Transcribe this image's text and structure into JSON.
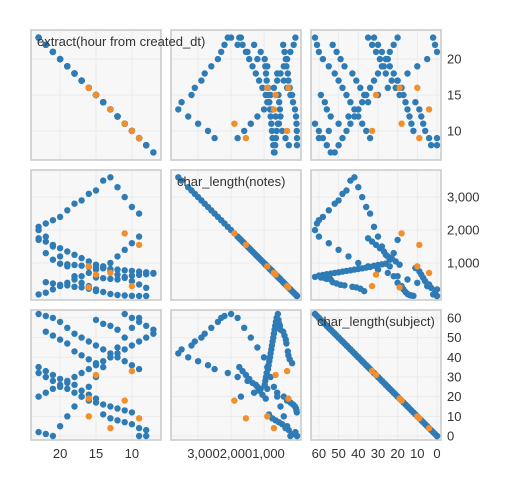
{
  "chart_data": {
    "type": "scatter",
    "title": "",
    "variables": [
      {
        "name": "extract(hour from created_dt)",
        "range": [
          6.5,
          23.5
        ],
        "ticks": [
          10,
          15,
          20
        ],
        "tick_labels": [
          "10",
          "15",
          "20"
        ],
        "reversed_x": true
      },
      {
        "name": "char_length(notes)",
        "range": [
          0,
          3700
        ],
        "ticks": [
          1000,
          2000,
          3000
        ],
        "tick_labels": [
          "1,000",
          "2,000",
          "3,000"
        ],
        "reversed_x": true
      },
      {
        "name": "char_length(subject)",
        "range": [
          0,
          62
        ],
        "ticks": [
          0,
          10,
          20,
          30,
          40,
          50,
          60
        ],
        "tick_labels": [
          "0",
          "10",
          "20",
          "30",
          "40",
          "50",
          "60"
        ],
        "reversed_x": true
      }
    ],
    "x_tick_text": "3,0002,0001,000",
    "colors": {
      "base": "#2e7bb6",
      "highlight": "#f28e2b",
      "panel": "#f7f7f7",
      "border": "#c8c8c8"
    },
    "grid": true,
    "legend": "none",
    "points": [
      [
        8,
        0,
        0
      ],
      [
        9,
        0,
        0
      ],
      [
        10,
        5,
        12
      ],
      [
        11,
        15,
        13
      ],
      [
        12,
        30,
        14
      ],
      [
        13,
        60,
        15
      ],
      [
        14,
        120,
        16
      ],
      [
        15,
        200,
        17
      ],
      [
        16,
        300,
        18
      ],
      [
        17,
        400,
        20
      ],
      [
        18,
        600,
        22
      ],
      [
        19,
        900,
        24
      ],
      [
        20,
        1200,
        25
      ],
      [
        21,
        1500,
        28
      ],
      [
        22,
        1800,
        30
      ],
      [
        23,
        2100,
        32
      ],
      [
        9,
        2500,
        34
      ],
      [
        10,
        2700,
        36
      ],
      [
        11,
        3000,
        38
      ],
      [
        12,
        3300,
        40
      ],
      [
        13,
        3600,
        42
      ],
      [
        14,
        3500,
        44
      ],
      [
        15,
        3200,
        46
      ],
      [
        16,
        3100,
        48
      ],
      [
        17,
        2900,
        50
      ],
      [
        18,
        2800,
        52
      ],
      [
        19,
        2600,
        55
      ],
      [
        20,
        2400,
        58
      ],
      [
        21,
        2300,
        60
      ],
      [
        22,
        2200,
        61
      ],
      [
        23,
        2000,
        62
      ],
      [
        9,
        1800,
        60
      ],
      [
        10,
        1600,
        55
      ],
      [
        11,
        1400,
        50
      ],
      [
        12,
        1200,
        45
      ],
      [
        13,
        1000,
        40
      ],
      [
        14,
        900,
        35
      ],
      [
        15,
        800,
        30
      ],
      [
        16,
        700,
        25
      ],
      [
        17,
        600,
        20
      ],
      [
        18,
        500,
        15
      ],
      [
        19,
        400,
        10
      ],
      [
        20,
        300,
        5
      ],
      [
        21,
        200,
        0
      ],
      [
        22,
        100,
        1
      ],
      [
        23,
        50,
        2
      ],
      [
        8,
        250,
        3
      ],
      [
        9,
        350,
        4
      ],
      [
        10,
        450,
        6
      ],
      [
        11,
        550,
        7
      ],
      [
        12,
        650,
        8
      ],
      [
        13,
        750,
        9
      ],
      [
        14,
        850,
        11
      ],
      [
        15,
        950,
        19
      ],
      [
        16,
        1050,
        21
      ],
      [
        17,
        1150,
        23
      ],
      [
        18,
        1250,
        26
      ],
      [
        19,
        1350,
        27
      ],
      [
        20,
        1450,
        29
      ],
      [
        21,
        1550,
        31
      ],
      [
        22,
        1650,
        33
      ],
      [
        23,
        1750,
        35
      ],
      [
        15,
        150,
        37
      ],
      [
        16,
        220,
        39
      ],
      [
        17,
        260,
        41
      ],
      [
        18,
        280,
        43
      ],
      [
        19,
        320,
        47
      ],
      [
        20,
        340,
        49
      ],
      [
        21,
        380,
        51
      ],
      [
        22,
        420,
        53
      ],
      [
        12,
        500,
        54
      ],
      [
        13,
        520,
        56
      ],
      [
        14,
        540,
        57
      ],
      [
        15,
        560,
        59
      ],
      [
        11,
        580,
        62
      ],
      [
        10,
        620,
        60
      ],
      [
        9,
        640,
        58
      ],
      [
        8,
        660,
        56
      ],
      [
        7,
        680,
        54
      ],
      [
        7,
        700,
        52
      ],
      [
        8,
        720,
        50
      ],
      [
        9,
        740,
        48
      ],
      [
        10,
        760,
        46
      ],
      [
        11,
        780,
        44
      ],
      [
        12,
        800,
        42
      ],
      [
        13,
        820,
        40
      ],
      [
        14,
        840,
        38
      ],
      [
        15,
        860,
        36
      ],
      [
        16,
        880,
        34
      ],
      [
        17,
        920,
        32
      ],
      [
        18,
        940,
        30
      ],
      [
        19,
        960,
        28
      ],
      [
        20,
        980,
        26
      ],
      [
        21,
        1100,
        24
      ],
      [
        22,
        1300,
        22
      ],
      [
        23,
        1700,
        20
      ]
    ],
    "highlight_points": [
      [
        10,
        300,
        33
      ],
      [
        11,
        1900,
        18
      ],
      [
        16,
        900,
        10
      ],
      [
        13,
        700,
        4
      ],
      [
        15,
        650,
        31
      ],
      [
        9,
        1550,
        9
      ],
      [
        16,
        260,
        19
      ]
    ]
  }
}
